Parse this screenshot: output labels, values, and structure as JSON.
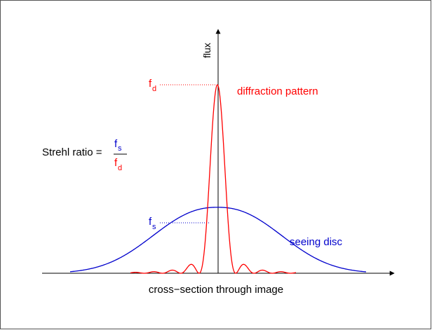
{
  "labels": {
    "y_axis": "flux",
    "x_axis": "cross−section through image",
    "diffraction": "diffraction pattern",
    "seeing": "seeing disc",
    "strehl_prefix": "Strehl ratio =",
    "f": "f",
    "sub_d": "d",
    "sub_s": "s"
  },
  "colors": {
    "diffraction": "#ff0000",
    "seeing": "#0000cc",
    "axis": "#000000",
    "frame": "#555555"
  },
  "curves": {
    "diffraction_peak": 1.0,
    "seeing_peak": 0.35
  }
}
